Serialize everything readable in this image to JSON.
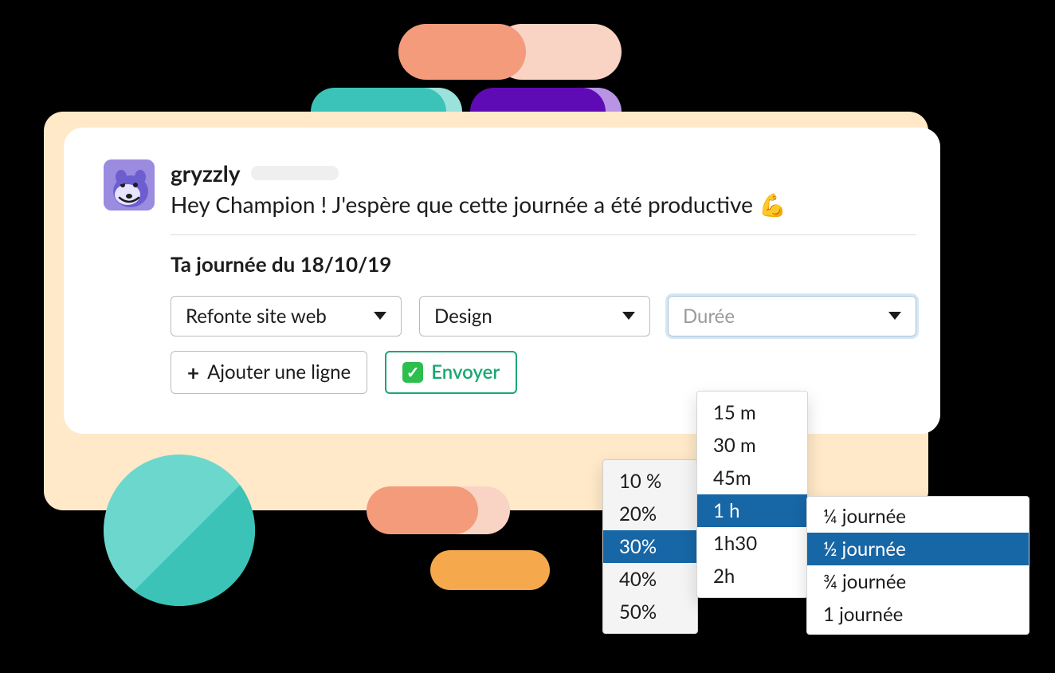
{
  "colors": {
    "page_bg": "#000000",
    "card_bg": "#ffffff",
    "card_shadow_bg": "#ffe9c8",
    "text": "#1d1c1d",
    "text_muted": "#9a9a9a",
    "divider": "#dddddd",
    "border": "#bcbcbc",
    "select_focus_border": "#a9c4d8",
    "select_focus_ring": "#d6e6f2",
    "send_green": "#1aa772",
    "check_bg": "#2cbf4e",
    "popover_bg": "#f4f4f4",
    "popover_border": "#cfcfcf",
    "option_selected_bg": "#1766a6",
    "option_selected_text": "#ffffff",
    "avatar_bg": "#9b8ce0",
    "timestamp_blob": "#efefef",
    "pills": {
      "orange_solid": "#f39b7b",
      "orange_light": "#f9d3c3",
      "teal_solid": "#3bc3b8",
      "teal_light": "#9ae2db",
      "purple_solid": "#5e0bb5",
      "purple_light": "#b994e5",
      "yellow": "#f5a94c",
      "circle_light": "#6cd7cd",
      "circle_dark": "#3bc3b8"
    }
  },
  "message": {
    "sender": "gryzzly",
    "greeting": "Hey Champion ! J'espère que cette journée a été productive",
    "emoji": "💪"
  },
  "section": {
    "title": "Ta journée du 18/10/19"
  },
  "selects": {
    "project": {
      "label": "Refonte site web"
    },
    "task": {
      "label": "Design"
    },
    "duration": {
      "placeholder": "Durée"
    }
  },
  "actions": {
    "add_line": "Ajouter une ligne",
    "send": "Envoyer"
  },
  "popovers": {
    "percent": {
      "options": [
        "10 %",
        "20%",
        "30%",
        "40%",
        "50%"
      ],
      "selected_index": 2
    },
    "time": {
      "options": [
        "15 m",
        "30 m",
        "45m",
        "1 h",
        "1h30",
        "2h"
      ],
      "selected_index": 3
    },
    "day": {
      "options": [
        "¼ journée",
        "½ journée",
        "¾ journée",
        "1 journée"
      ],
      "selected_index": 1
    }
  }
}
